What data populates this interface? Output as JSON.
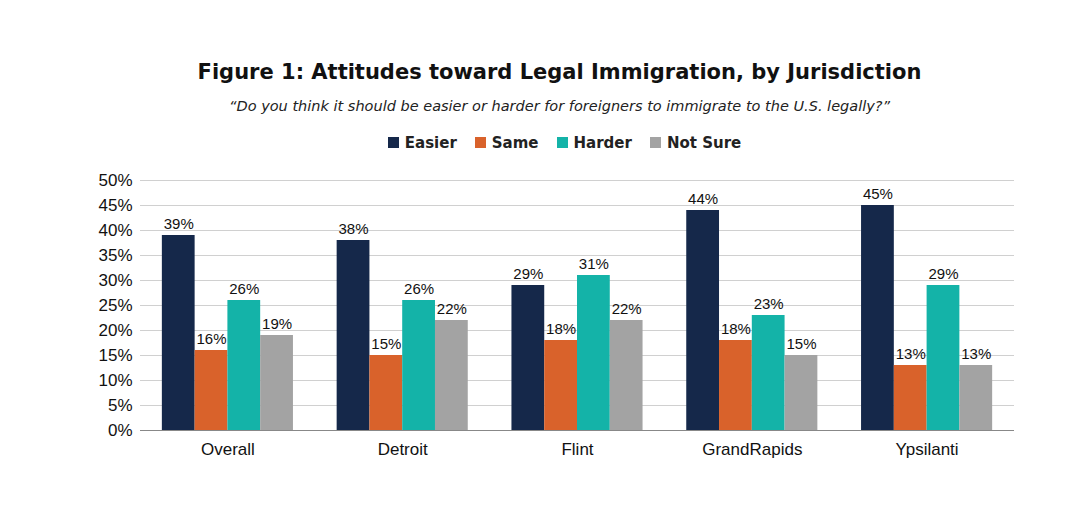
{
  "chart_data": {
    "type": "bar",
    "title": "Figure 1: Attitudes toward Legal Immigration, by Jurisdiction",
    "subtitle": "“Do you think it should be easier or harder for foreigners to immigrate to the U.S. legally?”",
    "categories": [
      "Overall",
      "Detroit",
      "Flint",
      "GrandRapids",
      "Ypsilanti"
    ],
    "series": [
      {
        "name": "Easier",
        "color": "#15284a",
        "values": [
          39,
          38,
          29,
          44,
          45
        ],
        "value_labels": [
          "39%",
          "38%",
          "29%",
          "44%",
          "45%"
        ]
      },
      {
        "name": "Same",
        "color": "#d9622b",
        "values": [
          16,
          15,
          18,
          18,
          13
        ],
        "value_labels": [
          "16%",
          "15%",
          "18%",
          "18%",
          "13%"
        ]
      },
      {
        "name": "Harder",
        "color": "#14b3a8",
        "values": [
          26,
          26,
          31,
          23,
          29
        ],
        "value_labels": [
          "26%",
          "26%",
          "31%",
          "23%",
          "29%"
        ]
      },
      {
        "name": "Not Sure",
        "color": "#a3a3a3",
        "values": [
          19,
          22,
          22,
          15,
          13
        ],
        "value_labels": [
          "19%",
          "22%",
          "22%",
          "15%",
          "13%"
        ]
      }
    ],
    "ylim": [
      0,
      50
    ],
    "yticks": [
      {
        "value": 0,
        "label": "0%"
      },
      {
        "value": 5,
        "label": "5%"
      },
      {
        "value": 10,
        "label": "10%"
      },
      {
        "value": 15,
        "label": "15%"
      },
      {
        "value": 20,
        "label": "20%"
      },
      {
        "value": 25,
        "label": "25%"
      },
      {
        "value": 30,
        "label": "30%"
      },
      {
        "value": 35,
        "label": "35%"
      },
      {
        "value": 40,
        "label": "40%"
      },
      {
        "value": 45,
        "label": "45%"
      },
      {
        "value": 50,
        "label": "50%"
      }
    ],
    "grid": true,
    "legend": "top",
    "data_labels": true
  }
}
